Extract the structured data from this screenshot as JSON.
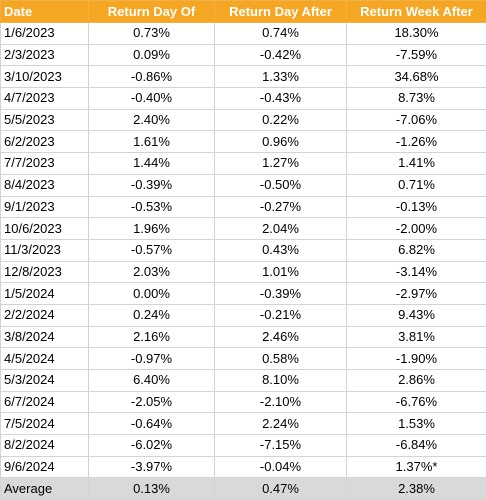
{
  "header": {
    "date": "Date",
    "day_of": "Return Day Of",
    "day_after": "Return Day After",
    "week_after": "Return Week After"
  },
  "rows": [
    {
      "date": "1/6/2023",
      "day_of": "0.73%",
      "day_after": "0.74%",
      "week_after": "18.30%"
    },
    {
      "date": "2/3/2023",
      "day_of": "0.09%",
      "day_after": "-0.42%",
      "week_after": "-7.59%"
    },
    {
      "date": "3/10/2023",
      "day_of": "-0.86%",
      "day_after": "1.33%",
      "week_after": "34.68%"
    },
    {
      "date": "4/7/2023",
      "day_of": "-0.40%",
      "day_after": "-0.43%",
      "week_after": "8.73%"
    },
    {
      "date": "5/5/2023",
      "day_of": "2.40%",
      "day_after": "0.22%",
      "week_after": "-7.06%"
    },
    {
      "date": "6/2/2023",
      "day_of": "1.61%",
      "day_after": "0.96%",
      "week_after": "-1.26%"
    },
    {
      "date": "7/7/2023",
      "day_of": "1.44%",
      "day_after": "1.27%",
      "week_after": "1.41%"
    },
    {
      "date": "8/4/2023",
      "day_of": "-0.39%",
      "day_after": "-0.50%",
      "week_after": "0.71%"
    },
    {
      "date": "9/1/2023",
      "day_of": "-0.53%",
      "day_after": "-0.27%",
      "week_after": "-0.13%"
    },
    {
      "date": "10/6/2023",
      "day_of": "1.96%",
      "day_after": "2.04%",
      "week_after": "-2.00%"
    },
    {
      "date": "11/3/2023",
      "day_of": "-0.57%",
      "day_after": "0.43%",
      "week_after": "6.82%"
    },
    {
      "date": "12/8/2023",
      "day_of": "2.03%",
      "day_after": "1.01%",
      "week_after": "-3.14%"
    },
    {
      "date": "1/5/2024",
      "day_of": "0.00%",
      "day_after": "-0.39%",
      "week_after": "-2.97%"
    },
    {
      "date": "2/2/2024",
      "day_of": "0.24%",
      "day_after": "-0.21%",
      "week_after": "9.43%"
    },
    {
      "date": "3/8/2024",
      "day_of": "2.16%",
      "day_after": "2.46%",
      "week_after": "3.81%"
    },
    {
      "date": "4/5/2024",
      "day_of": "-0.97%",
      "day_after": "0.58%",
      "week_after": "-1.90%"
    },
    {
      "date": "5/3/2024",
      "day_of": "6.40%",
      "day_after": "8.10%",
      "week_after": "2.86%"
    },
    {
      "date": "6/7/2024",
      "day_of": "-2.05%",
      "day_after": "-2.10%",
      "week_after": "-6.76%"
    },
    {
      "date": "7/5/2024",
      "day_of": "-0.64%",
      "day_after": "2.24%",
      "week_after": "1.53%"
    },
    {
      "date": "8/2/2024",
      "day_of": "-6.02%",
      "day_after": "-7.15%",
      "week_after": "-6.84%"
    },
    {
      "date": "9/6/2024",
      "day_of": "-3.97%",
      "day_after": "-0.04%",
      "week_after": "1.37%*"
    }
  ],
  "average": {
    "label": "Average",
    "day_of": "0.13%",
    "day_after": "0.47%",
    "week_after": "2.38%"
  },
  "colors": {
    "header_bg": "#f5a623",
    "header_text": "#ffffff",
    "average_bg": "#d9d9d9"
  }
}
